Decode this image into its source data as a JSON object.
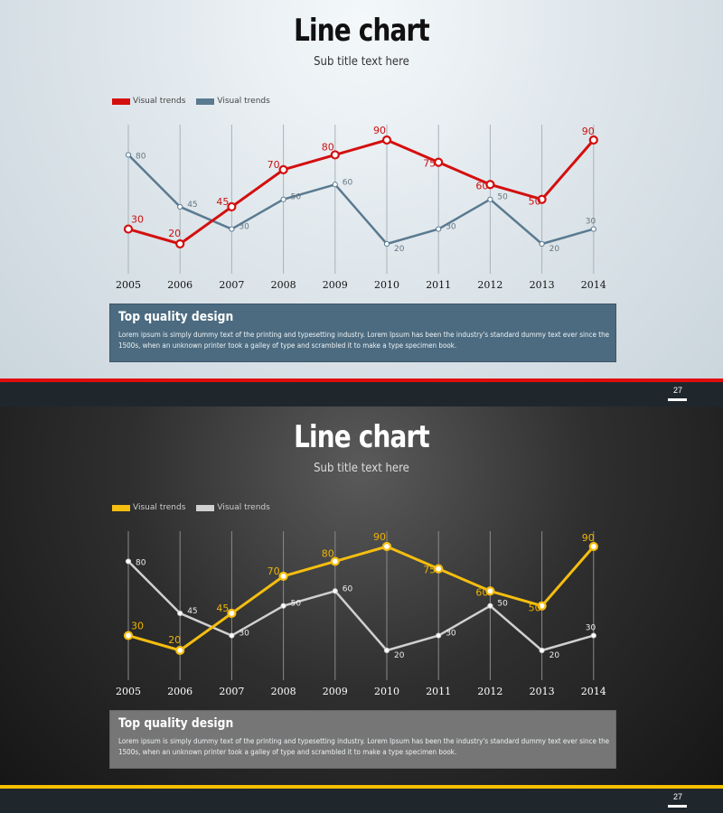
{
  "slides": [
    {
      "title": "Line chart",
      "subtitle": "Sub title text here",
      "info_title": "Top quality design",
      "info_text": "Lorem ipsum is simply dummy text of the printing and typesetting industry. Lorem Ipsum has been the industry's standard dummy text ever since the 1500s, when an unknown printer took a galley of type and scrambled it to make a type specimen book.",
      "page_number": "27",
      "theme": {
        "series1_color": "#d40f0f",
        "series2_color": "#5a7a90",
        "gridline_color": "#a8b3ba",
        "tick_color": "#111111",
        "value1_color": "#cc1111",
        "value2_color": "#667680"
      }
    },
    {
      "title": "Line chart",
      "subtitle": "Sub title text here",
      "info_title": "Top quality design",
      "info_text": "Lorem ipsum is simply dummy text of the printing and typesetting industry. Lorem Ipsum has been the industry's standard dummy text ever since the 1500s, when an unknown printer took a galley of type and scrambled it to make a type specimen book.",
      "page_number": "27",
      "theme": {
        "series1_color": "#f5be10",
        "series2_color": "#d0d0d0",
        "gridline_color": "#8a8a8a",
        "tick_color": "#ffffff",
        "value1_color": "#f0b400",
        "value2_color": "#eeeeee"
      }
    }
  ],
  "chart_data": [
    {
      "type": "line",
      "title": "Line chart",
      "subtitle": "Sub title text here",
      "x": [
        "2005",
        "2006",
        "2007",
        "2008",
        "2009",
        "2010",
        "2011",
        "2012",
        "2013",
        "2014"
      ],
      "ylim": [
        20,
        90
      ],
      "grid": true,
      "legend_position": "top-left",
      "series": [
        {
          "name": "Visual trends",
          "values": [
            30,
            20,
            45,
            70,
            80,
            90,
            75,
            60,
            50,
            90
          ]
        },
        {
          "name": "Visual trends",
          "values": [
            80,
            45,
            30,
            50,
            60,
            20,
            30,
            50,
            20,
            30
          ]
        }
      ]
    },
    {
      "type": "line",
      "title": "Line chart",
      "subtitle": "Sub title text here",
      "x": [
        "2005",
        "2006",
        "2007",
        "2008",
        "2009",
        "2010",
        "2011",
        "2012",
        "2013",
        "2014"
      ],
      "ylim": [
        20,
        90
      ],
      "grid": true,
      "legend_position": "top-left",
      "series": [
        {
          "name": "Visual trends",
          "values": [
            30,
            20,
            45,
            70,
            80,
            90,
            75,
            60,
            50,
            90
          ]
        },
        {
          "name": "Visual trends",
          "values": [
            80,
            45,
            30,
            50,
            60,
            20,
            30,
            50,
            20,
            30
          ]
        }
      ]
    }
  ]
}
